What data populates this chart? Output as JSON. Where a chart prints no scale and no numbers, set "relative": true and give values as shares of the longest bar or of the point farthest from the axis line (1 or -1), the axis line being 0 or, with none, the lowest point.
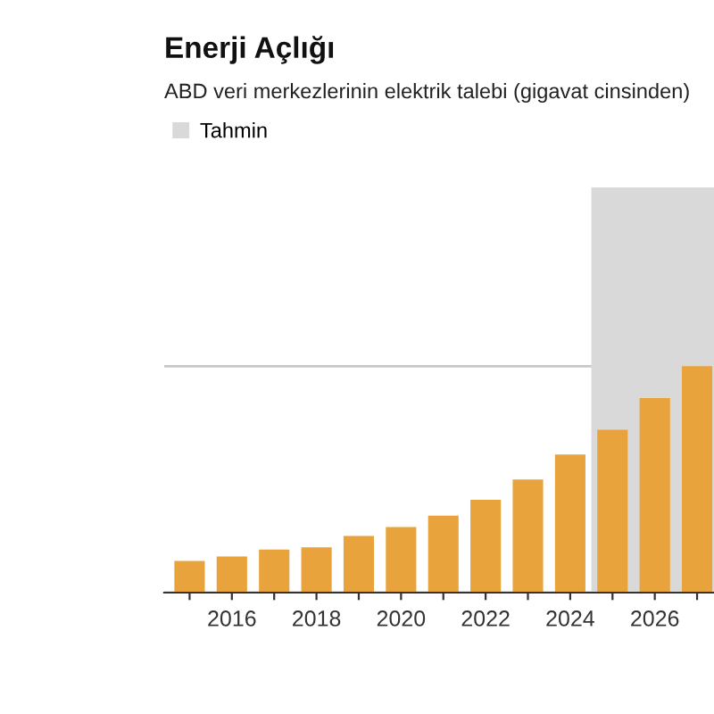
{
  "chart_data": {
    "type": "bar",
    "title": "Enerji Açlığı",
    "subtitle": "ABD veri merkezlerinin elektrik talebi (gigavat cinsinden)",
    "x": [
      2015,
      2016,
      2017,
      2018,
      2019,
      2020,
      2021,
      2022,
      2023,
      2024,
      2025,
      2026,
      2027
    ],
    "values": [
      0.14,
      0.16,
      0.19,
      0.2,
      0.25,
      0.29,
      0.34,
      0.41,
      0.5,
      0.61,
      0.72,
      0.86,
      1
    ],
    "color": "#e8a33d",
    "relative": true,
    "xlim": [
      2014.4,
      2027.4
    ],
    "xticks": [
      {
        "value": 2015,
        "label": null
      },
      2016,
      {
        "value": 2017,
        "label": null
      },
      2018,
      {
        "value": 2019,
        "label": null
      },
      2020,
      {
        "value": 2021,
        "label": null
      },
      2022,
      {
        "value": 2023,
        "label": null
      },
      2024,
      {
        "value": 2025,
        "label": null
      },
      2026,
      {
        "value": 2027,
        "label": null
      }
    ],
    "bands": [
      {
        "axis": "x",
        "from": 2024.5,
        "to": 2027.4,
        "label": "Tahmin",
        "color": "#d9d9d9"
      }
    ],
    "grid": "y",
    "legend": "top left",
    "tick_labels": "x"
  }
}
